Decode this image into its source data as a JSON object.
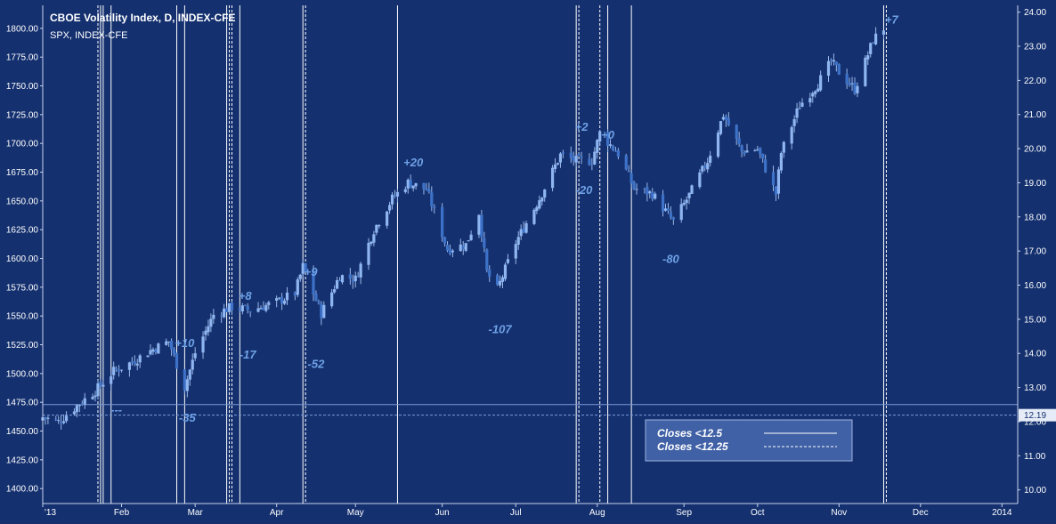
{
  "header": {
    "title": "CBOE Volatility Index, D, INDEX-CFE",
    "subtitle": "SPX, INDEX-CFE"
  },
  "chart_data": {
    "type": "candlestick",
    "left_axis": {
      "series": "SPX",
      "range": [
        1387,
        1820
      ],
      "ticks": [
        "1400.00",
        "1425.00",
        "1450.00",
        "1475.00",
        "1500.00",
        "1525.00",
        "1550.00",
        "1575.00",
        "1600.00",
        "1625.00",
        "1650.00",
        "1675.00",
        "1700.00",
        "1725.00",
        "1750.00",
        "1775.00",
        "1800.00"
      ]
    },
    "right_axis": {
      "series": "CBOE Volatility Index",
      "range": [
        9.6,
        24.2
      ],
      "ticks": [
        "10.00",
        "11.00",
        "12.00",
        "13.00",
        "14.00",
        "15.00",
        "16.00",
        "17.00",
        "18.00",
        "19.00",
        "20.00",
        "21.00",
        "22.00",
        "23.00",
        "24.00"
      ],
      "last_value_label": "12.19",
      "last_value": 12.19
    },
    "x_axis": {
      "start": "2013-01-02",
      "end": "2014-01-08",
      "tick_labels": [
        {
          "date": "2013-01-02",
          "label": "'13"
        },
        {
          "date": "2013-02-01",
          "label": "Feb"
        },
        {
          "date": "2013-03-01",
          "label": "Mar"
        },
        {
          "date": "2013-04-01",
          "label": "Apr"
        },
        {
          "date": "2013-05-01",
          "label": "May"
        },
        {
          "date": "2013-06-03",
          "label": "Jun"
        },
        {
          "date": "2013-07-01",
          "label": "Jul"
        },
        {
          "date": "2013-08-01",
          "label": "Aug"
        },
        {
          "date": "2013-09-03",
          "label": "Sep"
        },
        {
          "date": "2013-10-01",
          "label": "Oct"
        },
        {
          "date": "2013-11-01",
          "label": "Nov"
        },
        {
          "date": "2013-12-02",
          "label": "Dec"
        },
        {
          "date": "2014-01-02",
          "label": "2014"
        }
      ]
    },
    "spx_close_path": [
      [
        "2013-01-02",
        1462
      ],
      [
        "2013-01-08",
        1458
      ],
      [
        "2013-01-15",
        1472
      ],
      [
        "2013-01-22",
        1485
      ],
      [
        "2013-01-29",
        1502
      ],
      [
        "2013-02-05",
        1510
      ],
      [
        "2013-02-12",
        1520
      ],
      [
        "2013-02-19",
        1528
      ],
      [
        "2013-02-25",
        1488
      ],
      [
        "2013-03-01",
        1518
      ],
      [
        "2013-03-08",
        1551
      ],
      [
        "2013-03-15",
        1558
      ],
      [
        "2013-03-22",
        1555
      ],
      [
        "2013-04-01",
        1562
      ],
      [
        "2013-04-08",
        1570
      ],
      [
        "2013-04-11",
        1593
      ],
      [
        "2013-04-18",
        1552
      ],
      [
        "2013-04-25",
        1585
      ],
      [
        "2013-05-01",
        1582
      ],
      [
        "2013-05-08",
        1625
      ],
      [
        "2013-05-15",
        1652
      ],
      [
        "2013-05-21",
        1666
      ],
      [
        "2013-05-28",
        1660
      ],
      [
        "2013-06-05",
        1608
      ],
      [
        "2013-06-12",
        1612
      ],
      [
        "2013-06-17",
        1640
      ],
      [
        "2013-06-20",
        1588
      ],
      [
        "2013-06-24",
        1573
      ],
      [
        "2013-07-01",
        1614
      ],
      [
        "2013-07-10",
        1652
      ],
      [
        "2013-07-18",
        1690
      ],
      [
        "2013-07-24",
        1685
      ],
      [
        "2013-07-30",
        1685
      ],
      [
        "2013-08-02",
        1709
      ],
      [
        "2013-08-09",
        1691
      ],
      [
        "2013-08-15",
        1661
      ],
      [
        "2013-08-22",
        1656
      ],
      [
        "2013-08-30",
        1632
      ],
      [
        "2013-09-05",
        1655
      ],
      [
        "2013-09-12",
        1685
      ],
      [
        "2013-09-18",
        1725
      ],
      [
        "2013-09-25",
        1693
      ],
      [
        "2013-10-01",
        1695
      ],
      [
        "2013-10-08",
        1656
      ],
      [
        "2013-10-10",
        1692
      ],
      [
        "2013-10-17",
        1733
      ],
      [
        "2013-10-24",
        1752
      ],
      [
        "2013-10-29",
        1771
      ],
      [
        "2013-11-01",
        1762
      ],
      [
        "2013-11-07",
        1747
      ],
      [
        "2013-11-11",
        1771
      ],
      [
        "2013-11-14",
        1790
      ],
      [
        "2013-11-18",
        1800
      ]
    ],
    "vertical_lines": {
      "closes_below_12_5": [
        "2013-01-24",
        "2013-01-25",
        "2013-01-28",
        "2013-02-22",
        "2013-02-25",
        "2013-03-13",
        "2013-03-18",
        "2013-04-11",
        "2013-05-17",
        "2013-07-24",
        "2013-08-05",
        "2013-08-14",
        "2013-11-18"
      ],
      "closes_below_12_25": [
        "2013-01-23",
        "2013-03-14",
        "2013-03-15",
        "2013-04-12",
        "2013-07-25",
        "2013-08-02",
        "2013-11-19"
      ]
    },
    "annotations": [
      {
        "text": "---",
        "date": "2013-01-30",
        "spx": 1465
      },
      {
        "text": "+10",
        "date": "2013-02-25",
        "spx": 1523
      },
      {
        "text": "-35",
        "date": "2013-02-26",
        "spx": 1458
      },
      {
        "text": "+8",
        "date": "2013-03-20",
        "spx": 1564
      },
      {
        "text": "-17",
        "date": "2013-03-21",
        "spx": 1513
      },
      {
        "text": "+9",
        "date": "2013-04-14",
        "spx": 1585
      },
      {
        "text": "-52",
        "date": "2013-04-16",
        "spx": 1505
      },
      {
        "text": "+20",
        "date": "2013-05-23",
        "spx": 1680
      },
      {
        "text": "-107",
        "date": "2013-06-25",
        "spx": 1535
      },
      {
        "text": "+2",
        "date": "2013-07-26",
        "spx": 1711
      },
      {
        "text": "-20",
        "date": "2013-07-27",
        "spx": 1656
      },
      {
        "text": "+0",
        "date": "2013-08-05",
        "spx": 1704
      },
      {
        "text": "-80",
        "date": "2013-08-29",
        "spx": 1596
      },
      {
        "text": "+7",
        "date": "2013-11-21",
        "spx": 1804
      }
    ],
    "horizontal_lines": [
      {
        "axis": "right",
        "value": 12.5,
        "style": "solid"
      },
      {
        "axis": "right",
        "value": 12.19,
        "style": "dashed"
      }
    ],
    "legend": {
      "placement": "bottom-right",
      "items": [
        {
          "label": "Closes <12.5",
          "style": "solid"
        },
        {
          "label": "Closes <12.25",
          "style": "dashed"
        }
      ]
    },
    "colors": {
      "background": "#14306f",
      "up_candle": "#8fb6f0",
      "down_candle": "#3d72c8",
      "wick": "#9ab9e8",
      "annotation": "#6fa2e6",
      "vertical_line": "#ffffff",
      "legend_box": "#4f72b8"
    }
  }
}
